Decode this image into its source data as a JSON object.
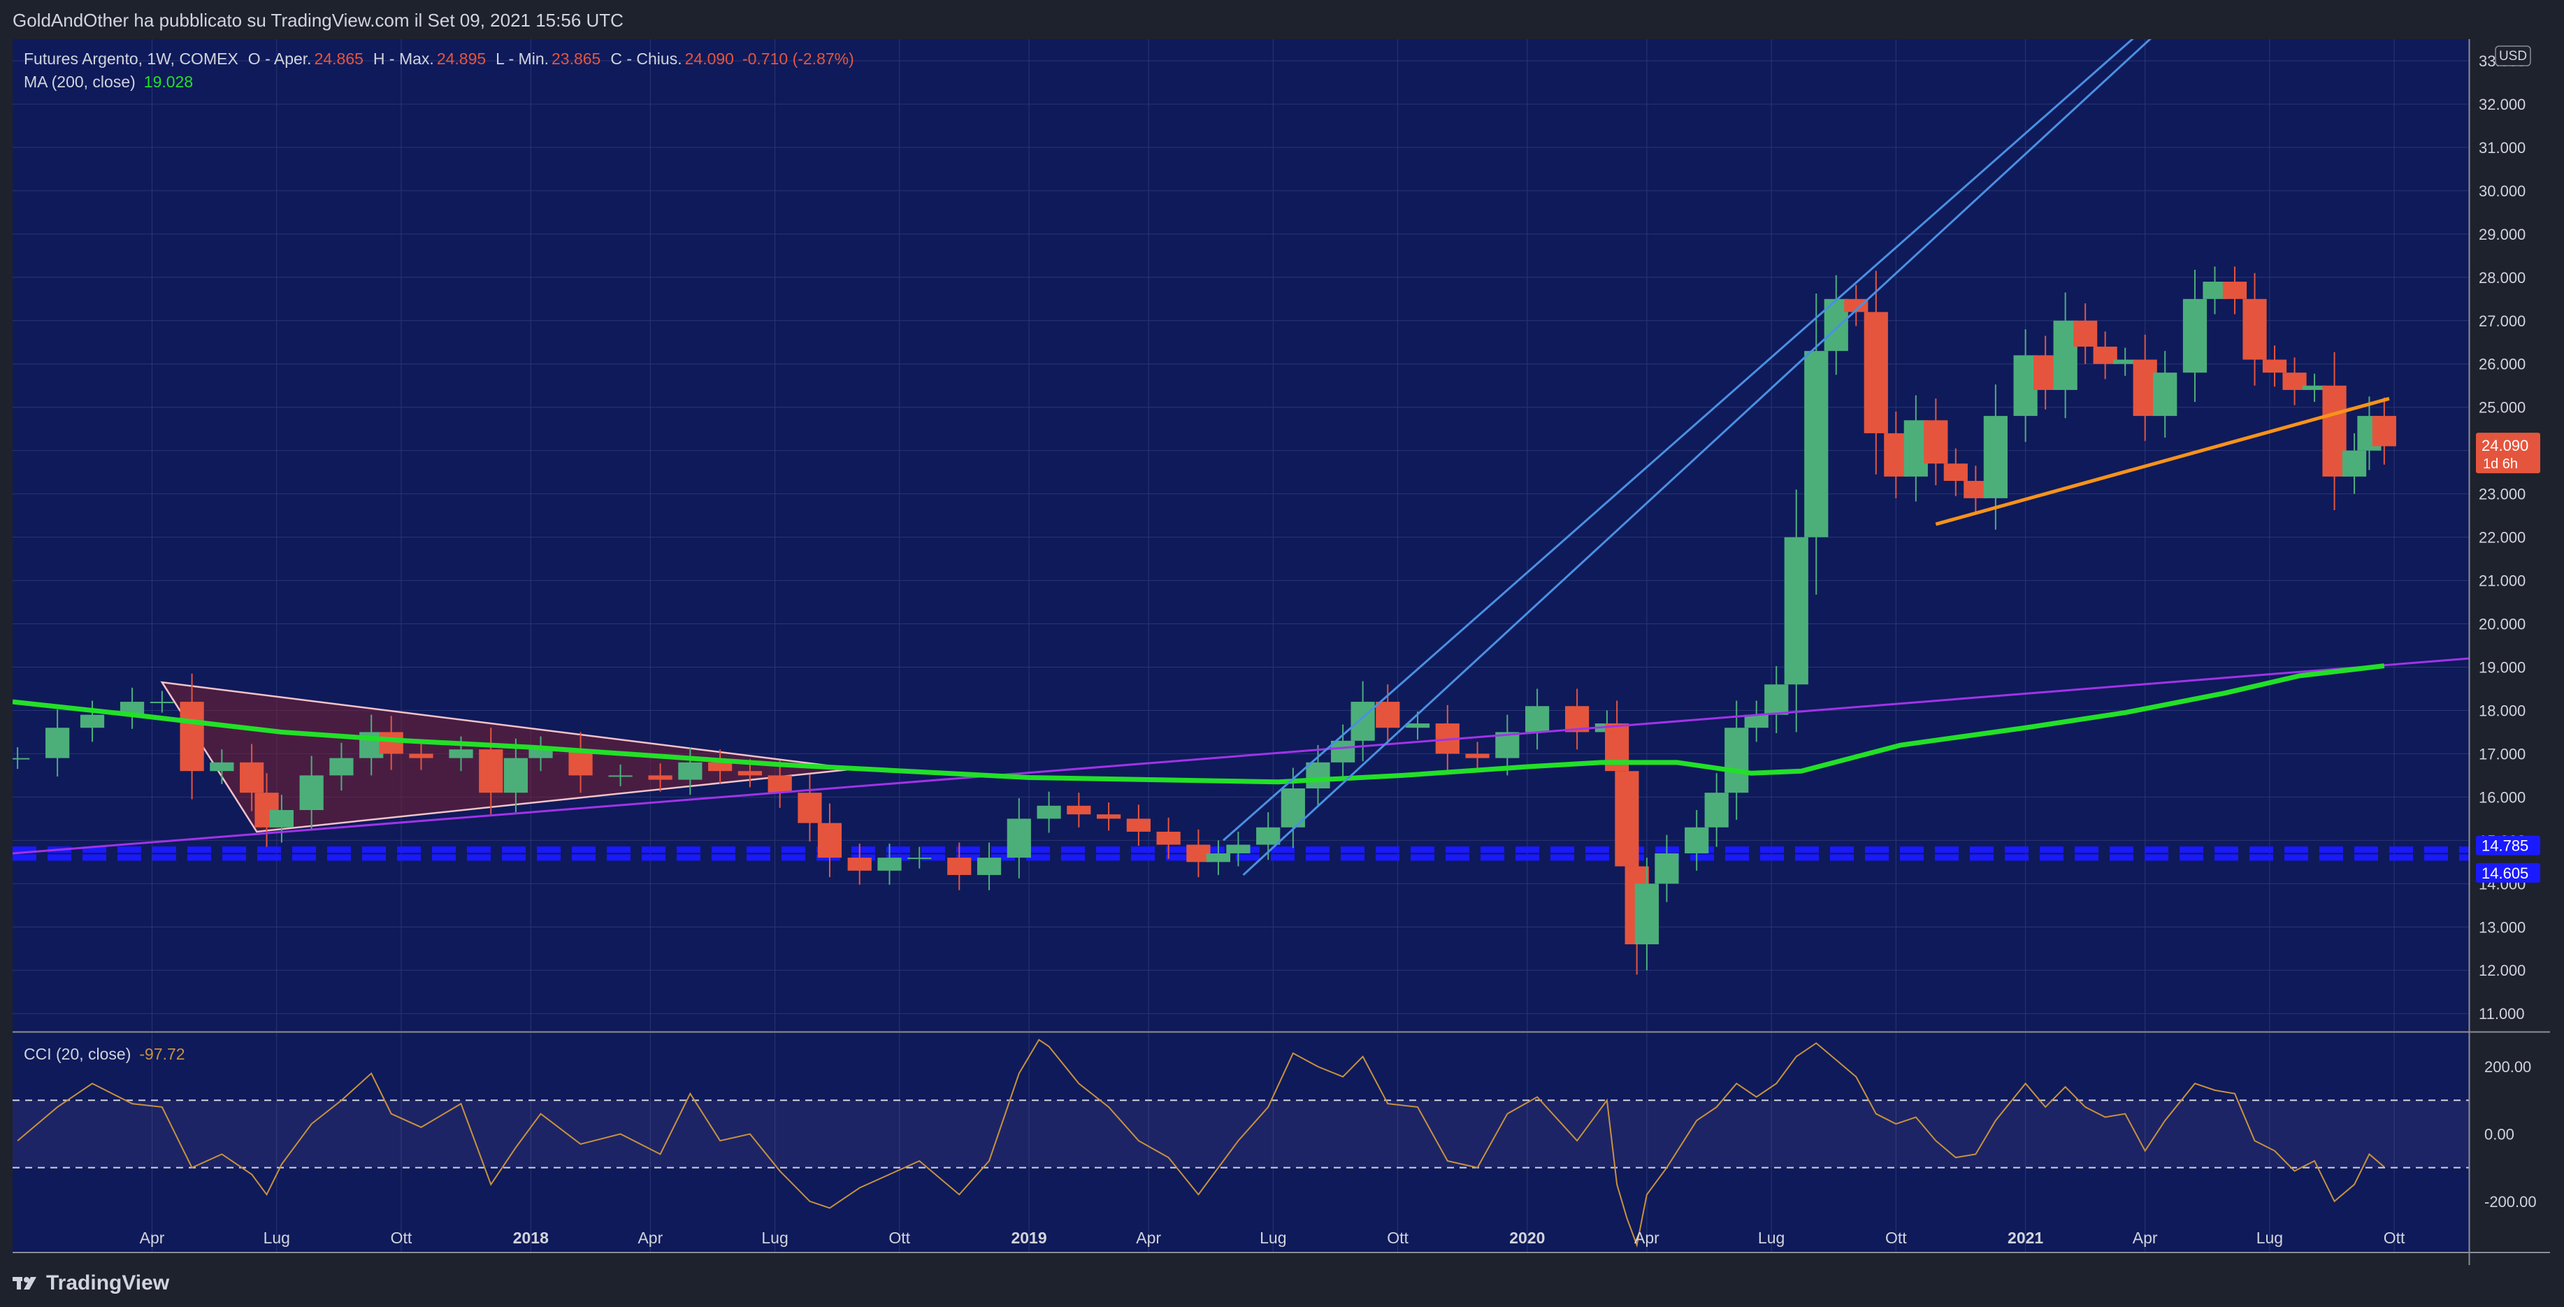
{
  "header": {
    "publish_info": "GoldAndOther ha pubblicato su TradingView.com il Set 09, 2021 15:56 UTC"
  },
  "brand": {
    "name": "TradingView"
  },
  "colors": {
    "background": "#0f1a5a",
    "up_candle": "#4caf7a",
    "down_candle": "#e5553d",
    "ma_line": "#22e028",
    "purple_line": "#a033e8",
    "channel_line": "#4a90e2",
    "orange_line": "#f7931a",
    "cci_line": "#c8923e"
  },
  "legend": {
    "symbol": "Futures Argento, 1W, COMEX",
    "o_label": "O - Aper.",
    "o_value": "24.865",
    "h_label": "H - Max.",
    "h_value": "24.895",
    "l_label": "L - Min.",
    "l_value": "23.865",
    "c_label": "C - Chius.",
    "c_value": "24.090",
    "change": "-0.710 (-2.87%)",
    "ma_label": "MA (200, close)",
    "ma_value": "19.028"
  },
  "price_axis": {
    "currency": "USD",
    "ticks": [
      "33.000",
      "32.000",
      "31.000",
      "30.000",
      "29.000",
      "28.000",
      "27.000",
      "26.000",
      "25.000",
      "24.000",
      "23.000",
      "22.000",
      "21.000",
      "20.000",
      "19.000",
      "18.000",
      "17.000",
      "16.000",
      "15.000",
      "14.000",
      "13.000",
      "12.000",
      "11.000"
    ],
    "last_price": "24.090",
    "countdown": "1d 6h",
    "level_high": "14.785",
    "level_low": "14.605"
  },
  "cci_panel": {
    "label": "CCI (20, close)",
    "value": "-97.72",
    "ticks": [
      "200.00",
      "0.00",
      "-200.00"
    ]
  },
  "time_axis": {
    "labels": [
      "Apr",
      "Lug",
      "Ott",
      "2018",
      "Apr",
      "Lug",
      "Ott",
      "2019",
      "Apr",
      "Lug",
      "Ott",
      "2020",
      "Apr",
      "Lug",
      "Ott",
      "2021",
      "Apr",
      "Lug",
      "Ott"
    ]
  },
  "chart_data": {
    "type": "candlestick",
    "title": "Futures Argento, 1W, COMEX",
    "price_range": [
      10.6,
      33.5
    ],
    "cci_range": [
      -350,
      300
    ],
    "time_range": [
      2016.96,
      2021.89
    ],
    "time_labels": [
      {
        "t": 2017.24,
        "label": "Apr"
      },
      {
        "t": 2017.49,
        "label": "Lug"
      },
      {
        "t": 2017.74,
        "label": "Ott"
      },
      {
        "t": 2018.0,
        "label": "2018"
      },
      {
        "t": 2018.24,
        "label": "Apr"
      },
      {
        "t": 2018.49,
        "label": "Lug"
      },
      {
        "t": 2018.74,
        "label": "Ott"
      },
      {
        "t": 2019.0,
        "label": "2019"
      },
      {
        "t": 2019.24,
        "label": "Apr"
      },
      {
        "t": 2019.49,
        "label": "Lug"
      },
      {
        "t": 2019.74,
        "label": "Ott"
      },
      {
        "t": 2020.0,
        "label": "2020"
      },
      {
        "t": 2020.24,
        "label": "Apr"
      },
      {
        "t": 2020.49,
        "label": "Lug"
      },
      {
        "t": 2020.74,
        "label": "Ott"
      },
      {
        "t": 2021.0,
        "label": "2021"
      },
      {
        "t": 2021.24,
        "label": "Apr"
      },
      {
        "t": 2021.49,
        "label": "Lug"
      },
      {
        "t": 2021.74,
        "label": "Ott"
      }
    ],
    "close_series": [
      [
        2016.97,
        16.9
      ],
      [
        2017.05,
        17.6
      ],
      [
        2017.12,
        17.9
      ],
      [
        2017.2,
        18.2
      ],
      [
        2017.26,
        18.2
      ],
      [
        2017.32,
        16.6
      ],
      [
        2017.38,
        16.8
      ],
      [
        2017.44,
        16.1
      ],
      [
        2017.47,
        15.3
      ],
      [
        2017.5,
        15.7
      ],
      [
        2017.56,
        16.5
      ],
      [
        2017.62,
        16.9
      ],
      [
        2017.68,
        17.5
      ],
      [
        2017.72,
        17.0
      ],
      [
        2017.78,
        16.9
      ],
      [
        2017.86,
        17.1
      ],
      [
        2017.92,
        16.1
      ],
      [
        2017.97,
        16.9
      ],
      [
        2018.02,
        17.1
      ],
      [
        2018.1,
        16.5
      ],
      [
        2018.18,
        16.5
      ],
      [
        2018.26,
        16.4
      ],
      [
        2018.32,
        16.8
      ],
      [
        2018.38,
        16.6
      ],
      [
        2018.44,
        16.5
      ],
      [
        2018.5,
        16.1
      ],
      [
        2018.56,
        15.4
      ],
      [
        2018.6,
        14.6
      ],
      [
        2018.66,
        14.3
      ],
      [
        2018.72,
        14.6
      ],
      [
        2018.78,
        14.6
      ],
      [
        2018.86,
        14.2
      ],
      [
        2018.92,
        14.6
      ],
      [
        2018.98,
        15.5
      ],
      [
        2019.04,
        15.8
      ],
      [
        2019.1,
        15.6
      ],
      [
        2019.16,
        15.5
      ],
      [
        2019.22,
        15.2
      ],
      [
        2019.28,
        14.9
      ],
      [
        2019.34,
        14.5
      ],
      [
        2019.38,
        14.7
      ],
      [
        2019.42,
        14.9
      ],
      [
        2019.48,
        15.3
      ],
      [
        2019.53,
        16.2
      ],
      [
        2019.58,
        16.8
      ],
      [
        2019.63,
        17.3
      ],
      [
        2019.67,
        18.2
      ],
      [
        2019.72,
        17.6
      ],
      [
        2019.78,
        17.7
      ],
      [
        2019.84,
        17.0
      ],
      [
        2019.9,
        16.9
      ],
      [
        2019.96,
        17.5
      ],
      [
        2020.02,
        18.1
      ],
      [
        2020.1,
        17.5
      ],
      [
        2020.16,
        17.7
      ],
      [
        2020.18,
        16.6
      ],
      [
        2020.2,
        14.4
      ],
      [
        2020.22,
        12.6
      ],
      [
        2020.24,
        14.0
      ],
      [
        2020.28,
        14.7
      ],
      [
        2020.34,
        15.3
      ],
      [
        2020.38,
        16.1
      ],
      [
        2020.42,
        17.6
      ],
      [
        2020.46,
        17.9
      ],
      [
        2020.5,
        18.6
      ],
      [
        2020.54,
        22.0
      ],
      [
        2020.58,
        26.3
      ],
      [
        2020.62,
        27.5
      ],
      [
        2020.66,
        27.2
      ],
      [
        2020.7,
        24.4
      ],
      [
        2020.74,
        23.4
      ],
      [
        2020.78,
        24.7
      ],
      [
        2020.82,
        23.7
      ],
      [
        2020.86,
        23.3
      ],
      [
        2020.9,
        22.9
      ],
      [
        2020.94,
        24.8
      ],
      [
        2021.0,
        26.2
      ],
      [
        2021.04,
        25.4
      ],
      [
        2021.08,
        27.0
      ],
      [
        2021.12,
        26.4
      ],
      [
        2021.16,
        26.0
      ],
      [
        2021.2,
        26.1
      ],
      [
        2021.24,
        24.8
      ],
      [
        2021.28,
        25.8
      ],
      [
        2021.34,
        27.5
      ],
      [
        2021.38,
        27.9
      ],
      [
        2021.42,
        27.5
      ],
      [
        2021.46,
        26.1
      ],
      [
        2021.5,
        25.8
      ],
      [
        2021.54,
        25.4
      ],
      [
        2021.58,
        25.5
      ],
      [
        2021.62,
        23.4
      ],
      [
        2021.66,
        24.0
      ],
      [
        2021.69,
        24.8
      ],
      [
        2021.72,
        24.1
      ]
    ],
    "ma_200": [
      [
        2016.96,
        18.2
      ],
      [
        2017.2,
        17.9
      ],
      [
        2017.5,
        17.5
      ],
      [
        2017.75,
        17.3
      ],
      [
        2018.0,
        17.15
      ],
      [
        2018.25,
        16.95
      ],
      [
        2018.5,
        16.75
      ],
      [
        2018.75,
        16.6
      ],
      [
        2019.0,
        16.45
      ],
      [
        2019.25,
        16.4
      ],
      [
        2019.5,
        16.35
      ],
      [
        2019.75,
        16.5
      ],
      [
        2020.0,
        16.7
      ],
      [
        2020.15,
        16.8
      ],
      [
        2020.3,
        16.8
      ],
      [
        2020.45,
        16.55
      ],
      [
        2020.55,
        16.6
      ],
      [
        2020.75,
        17.2
      ],
      [
        2021.0,
        17.6
      ],
      [
        2021.2,
        17.95
      ],
      [
        2021.4,
        18.4
      ],
      [
        2021.55,
        18.8
      ],
      [
        2021.72,
        19.03
      ]
    ],
    "purple_trendline": [
      [
        2016.96,
        14.7
      ],
      [
        2021.89,
        19.2
      ]
    ],
    "channel_lower": [
      [
        2019.43,
        14.2
      ],
      [
        2021.58,
        37.0
      ]
    ],
    "channel_upper": [
      [
        2019.39,
        15.0
      ],
      [
        2021.54,
        36.8
      ]
    ],
    "orange_trendline": [
      [
        2020.82,
        22.3
      ],
      [
        2021.73,
        25.2
      ]
    ],
    "triangle": [
      [
        2017.26,
        18.65
      ],
      [
        2017.45,
        15.2
      ],
      [
        2018.65,
        16.65
      ]
    ],
    "support_levels": [
      14.785,
      14.605
    ],
    "cci_series": [
      [
        2016.97,
        -20
      ],
      [
        2017.05,
        80
      ],
      [
        2017.12,
        150
      ],
      [
        2017.2,
        90
      ],
      [
        2017.26,
        80
      ],
      [
        2017.32,
        -100
      ],
      [
        2017.38,
        -60
      ],
      [
        2017.44,
        -120
      ],
      [
        2017.47,
        -180
      ],
      [
        2017.5,
        -90
      ],
      [
        2017.56,
        30
      ],
      [
        2017.62,
        100
      ],
      [
        2017.68,
        180
      ],
      [
        2017.72,
        60
      ],
      [
        2017.78,
        20
      ],
      [
        2017.86,
        90
      ],
      [
        2017.92,
        -150
      ],
      [
        2017.97,
        -40
      ],
      [
        2018.02,
        60
      ],
      [
        2018.1,
        -30
      ],
      [
        2018.18,
        0
      ],
      [
        2018.26,
        -60
      ],
      [
        2018.32,
        120
      ],
      [
        2018.38,
        -20
      ],
      [
        2018.44,
        0
      ],
      [
        2018.5,
        -110
      ],
      [
        2018.56,
        -200
      ],
      [
        2018.6,
        -220
      ],
      [
        2018.66,
        -160
      ],
      [
        2018.72,
        -120
      ],
      [
        2018.78,
        -80
      ],
      [
        2018.86,
        -180
      ],
      [
        2018.92,
        -80
      ],
      [
        2018.98,
        180
      ],
      [
        2019.02,
        280
      ],
      [
        2019.04,
        260
      ],
      [
        2019.1,
        150
      ],
      [
        2019.16,
        80
      ],
      [
        2019.22,
        -20
      ],
      [
        2019.28,
        -70
      ],
      [
        2019.34,
        -180
      ],
      [
        2019.38,
        -100
      ],
      [
        2019.42,
        -20
      ],
      [
        2019.48,
        80
      ],
      [
        2019.53,
        240
      ],
      [
        2019.58,
        200
      ],
      [
        2019.63,
        170
      ],
      [
        2019.67,
        230
      ],
      [
        2019.72,
        90
      ],
      [
        2019.78,
        80
      ],
      [
        2019.84,
        -80
      ],
      [
        2019.9,
        -100
      ],
      [
        2019.96,
        60
      ],
      [
        2020.02,
        110
      ],
      [
        2020.1,
        -20
      ],
      [
        2020.16,
        100
      ],
      [
        2020.18,
        -150
      ],
      [
        2020.2,
        -250
      ],
      [
        2020.22,
        -330
      ],
      [
        2020.24,
        -180
      ],
      [
        2020.28,
        -100
      ],
      [
        2020.34,
        40
      ],
      [
        2020.38,
        80
      ],
      [
        2020.42,
        150
      ],
      [
        2020.46,
        110
      ],
      [
        2020.5,
        150
      ],
      [
        2020.54,
        230
      ],
      [
        2020.58,
        270
      ],
      [
        2020.62,
        220
      ],
      [
        2020.66,
        170
      ],
      [
        2020.7,
        60
      ],
      [
        2020.74,
        30
      ],
      [
        2020.78,
        50
      ],
      [
        2020.82,
        -20
      ],
      [
        2020.86,
        -70
      ],
      [
        2020.9,
        -60
      ],
      [
        2020.94,
        40
      ],
      [
        2021.0,
        150
      ],
      [
        2021.04,
        80
      ],
      [
        2021.08,
        140
      ],
      [
        2021.12,
        80
      ],
      [
        2021.16,
        50
      ],
      [
        2021.2,
        60
      ],
      [
        2021.24,
        -50
      ],
      [
        2021.28,
        40
      ],
      [
        2021.34,
        150
      ],
      [
        2021.38,
        130
      ],
      [
        2021.42,
        120
      ],
      [
        2021.46,
        -20
      ],
      [
        2021.5,
        -50
      ],
      [
        2021.54,
        -110
      ],
      [
        2021.58,
        -80
      ],
      [
        2021.62,
        -200
      ],
      [
        2021.66,
        -150
      ],
      [
        2021.69,
        -60
      ],
      [
        2021.72,
        -98
      ]
    ]
  }
}
